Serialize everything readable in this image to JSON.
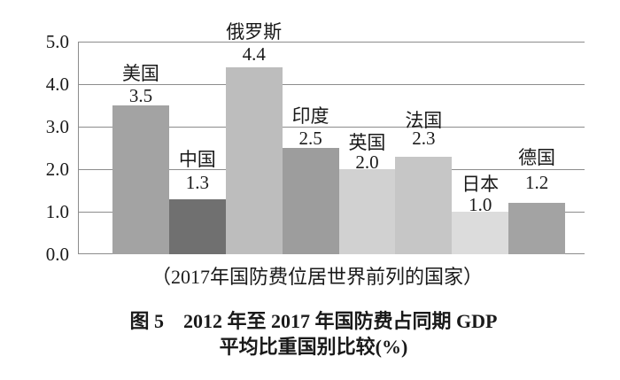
{
  "figure": {
    "caption": "（2017年国防费位居世界前列的国家）",
    "title_line1": "图 5　2012 年至 2017 年国防费占同期 GDP",
    "title_line2": "平均比重国别比较(%)"
  },
  "chart_data": {
    "type": "bar",
    "title": "图5 2012年至2017年国防费占同期GDP平均比重国别比较(%)",
    "subtitle": "（2017年国防费位居世界前列的国家）",
    "categories": [
      "美国",
      "中国",
      "俄罗斯",
      "印度",
      "英国",
      "法国",
      "日本",
      "德国"
    ],
    "values": [
      3.5,
      1.3,
      4.4,
      2.5,
      2.0,
      2.3,
      1.0,
      1.2
    ],
    "value_labels": [
      "3.5",
      "1.3",
      "4.4",
      "2.5",
      "2.0",
      "2.3",
      "1.0",
      "1.2"
    ],
    "bar_colors": [
      "#a3a3a3",
      "#707070",
      "#bdbdbd",
      "#9d9d9d",
      "#d1d1d1",
      "#c6c6c6",
      "#dcdcdc",
      "#a3a3a3"
    ],
    "ylim": [
      0,
      5
    ],
    "ytick_labels": [
      "0.0",
      "1.0",
      "2.0",
      "3.0",
      "4.0",
      "5.0"
    ],
    "grid": "horizontal",
    "legend": "none",
    "axis_color": "#8c8c8c",
    "text_color": "#1a1a1a",
    "label_gaps": [
      [
        29,
        4
      ],
      [
        38,
        12
      ],
      [
        33,
        8
      ],
      [
        29,
        4
      ],
      [
        23,
        1
      ],
      [
        34,
        14
      ],
      [
        24,
        1
      ],
      [
        44,
        16
      ]
    ]
  }
}
